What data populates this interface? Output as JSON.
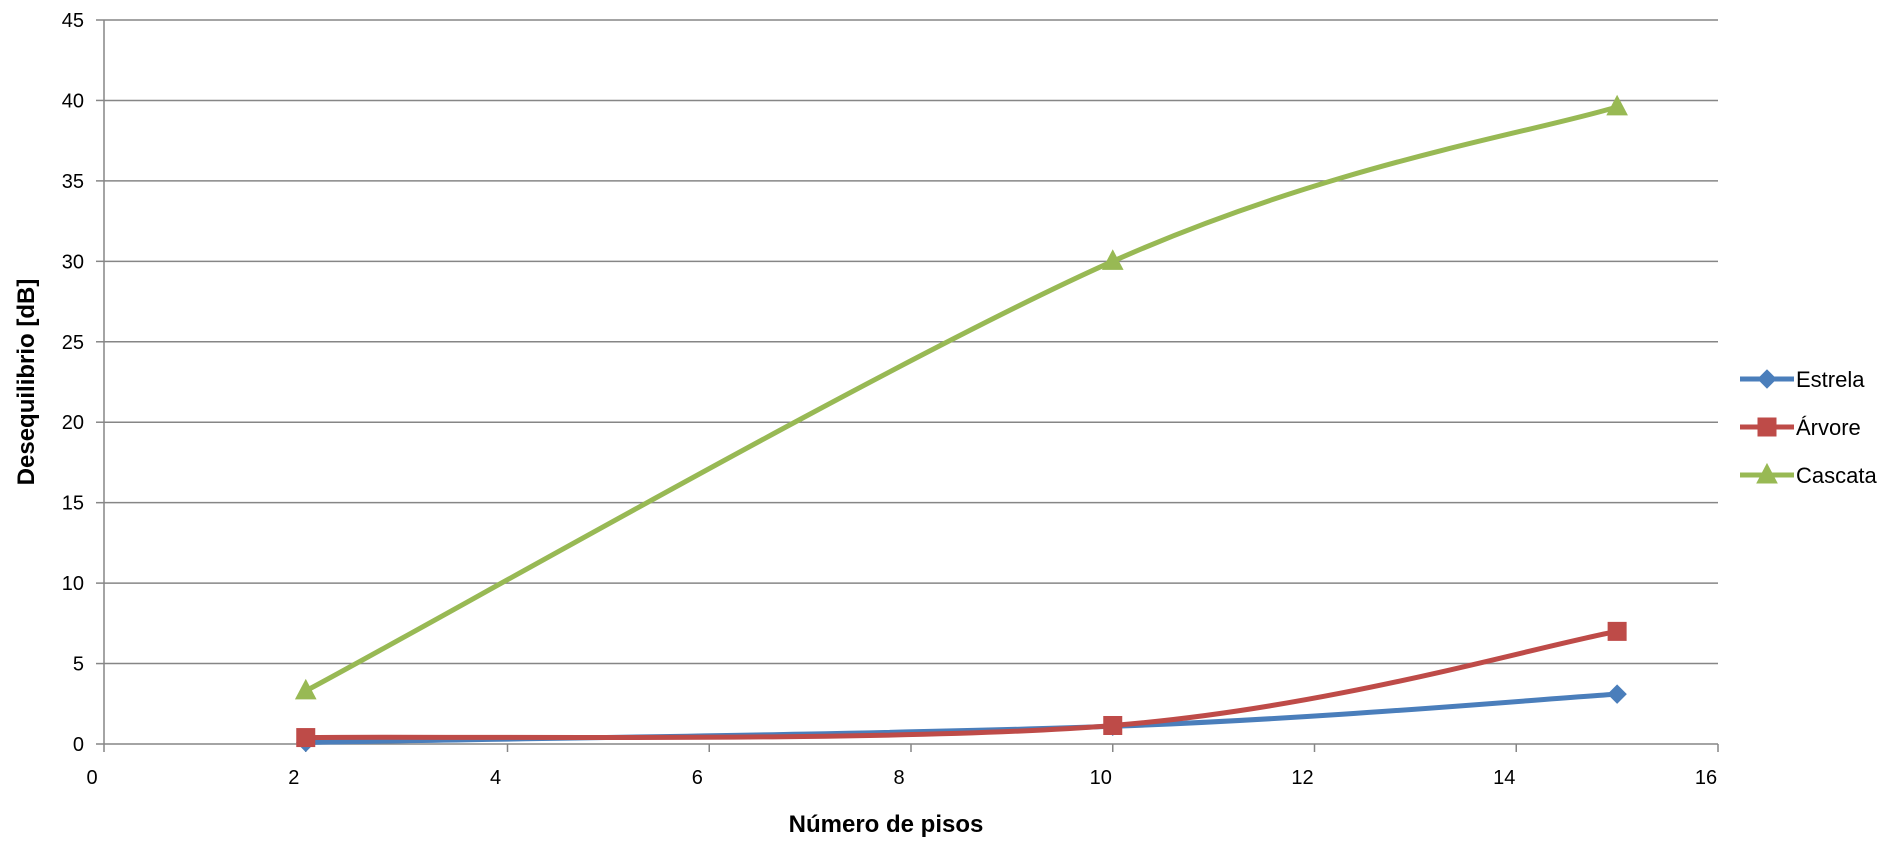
{
  "chart_data": {
    "type": "line",
    "title": "",
    "xlabel": "Número de pisos",
    "ylabel": "Desequilibrio [dB]",
    "xlim": [
      0,
      16
    ],
    "ylim": [
      0,
      45
    ],
    "xticks": [
      "0",
      "2",
      "4",
      "6",
      "8",
      "10",
      "12",
      "14",
      "16"
    ],
    "yticks": [
      "0",
      "5",
      "10",
      "15",
      "20",
      "25",
      "30",
      "35",
      "40",
      "45"
    ],
    "grid": "horizontal",
    "legend_position": "right",
    "x": [
      2,
      10,
      15
    ],
    "series": [
      {
        "name": "Estrela",
        "values": [
          0.1,
          1.1,
          3.1
        ],
        "color": "#4a7ebb",
        "marker": "diamond"
      },
      {
        "name": "Árvore",
        "values": [
          0.4,
          1.15,
          7.0
        ],
        "color": "#be4b48",
        "marker": "square"
      },
      {
        "name": "Cascata",
        "values": [
          3.3,
          30.0,
          39.6
        ],
        "color": "#98b954",
        "marker": "triangle"
      }
    ]
  }
}
